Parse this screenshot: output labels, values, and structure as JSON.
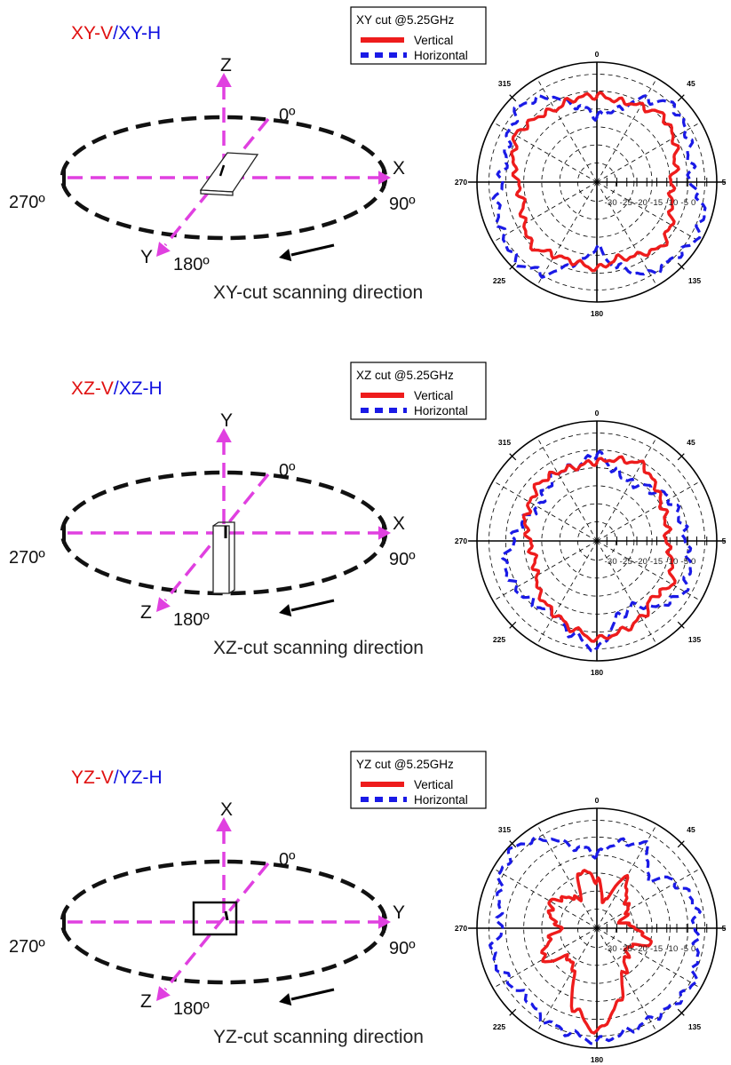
{
  "panels": [
    {
      "id": "xy",
      "title_v": "XY-V",
      "title_sep": "/",
      "title_h": "XY-H",
      "axis_up": "Z",
      "axis_right": "X",
      "axis_diag": "Y",
      "angle_0": "0º",
      "angle_90": "90º",
      "angle_180": "180º",
      "angle_270": "270º",
      "scan_label": "XY-cut scanning direction",
      "device": "flat",
      "legend": {
        "title": "XY cut @5.25GHz",
        "vertical": "Vertical",
        "horizontal": "Horizontal"
      },
      "polar": {
        "angles": {
          "a0": "0",
          "a45": "45",
          "a135": "135",
          "a180": "180",
          "a225": "225",
          "a270": "270",
          "a315": "315"
        },
        "scale_ticks": "-30 -25 -20 -15 -10 -5 0",
        "right_label": "5"
      }
    },
    {
      "id": "xz",
      "title_v": "XZ-V",
      "title_sep": "/",
      "title_h": "XZ-H",
      "axis_up": "Y",
      "axis_right": "X",
      "axis_diag": "Z",
      "angle_0": "0º",
      "angle_90": "90º",
      "angle_180": "180º",
      "angle_270": "270º",
      "scan_label": "XZ-cut scanning direction",
      "device": "upright",
      "legend": {
        "title": "XZ cut @5.25GHz",
        "vertical": "Vertical",
        "horizontal": "Horizontal"
      },
      "polar": {
        "angles": {
          "a0": "0",
          "a45": "45",
          "a135": "135",
          "a180": "180",
          "a225": "225",
          "a270": "270",
          "a315": "315"
        },
        "scale_ticks": "-30 -25 -20 -15 -10 -5 0",
        "right_label": "5"
      }
    },
    {
      "id": "yz",
      "title_v": "YZ-V",
      "title_sep": "/",
      "title_h": "YZ-H",
      "axis_up": "X",
      "axis_right": "Y",
      "axis_diag": "Z",
      "angle_0": "0º",
      "angle_90": "90º",
      "angle_180": "180º",
      "angle_270": "270º",
      "scan_label": "YZ-cut scanning direction",
      "device": "square",
      "legend": {
        "title": "YZ cut @5.25GHz",
        "vertical": "Vertical",
        "horizontal": "Horizontal"
      },
      "polar": {
        "angles": {
          "a0": "0",
          "a45": "45",
          "a135": "135",
          "a180": "180",
          "a225": "225",
          "a270": "270",
          "a315": "315"
        },
        "scale_ticks": "-30 -25 -20 -15 -10 -5 0",
        "right_label": "5"
      }
    }
  ],
  "colors": {
    "vertical": "#ee1c1c",
    "horizontal": "#1a1ae6",
    "axis": "#e040e0",
    "ellipse": "#111111",
    "title_v": "#e01010",
    "title_h": "#1010e0"
  }
}
